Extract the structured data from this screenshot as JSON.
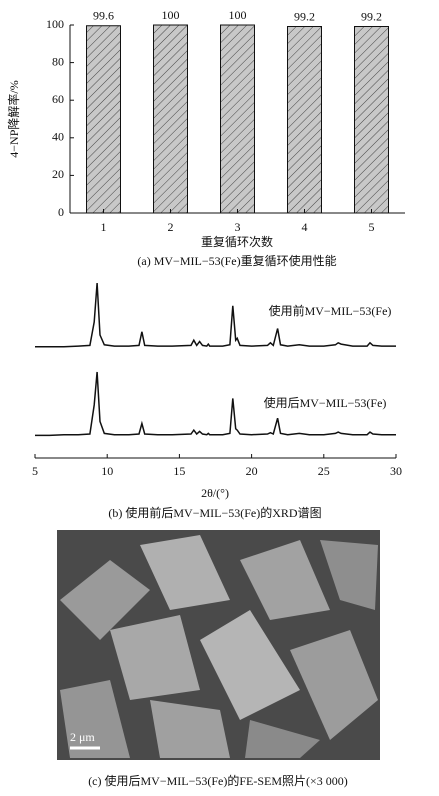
{
  "chart_data": [
    {
      "type": "bar",
      "title": "(a) MV−MIL−53(Fe)重复循环使用性能",
      "x_label": "重复循环次数",
      "y_label": "4−NP降解率/%",
      "categories": [
        "1",
        "2",
        "3",
        "4",
        "5"
      ],
      "values": [
        99.6,
        100,
        100,
        99.2,
        99.2
      ],
      "color": "#bdbdbd",
      "ylim": [
        0,
        100
      ],
      "yticks": [
        0,
        20,
        40,
        60,
        80,
        100
      ]
    },
    {
      "type": "line",
      "title": "(b) 使用前后MV−MIL−53(Fe)的XRD谱图",
      "x_label": "2θ/(°)",
      "x": [
        5,
        6,
        7,
        8,
        8.8,
        9.1,
        9.3,
        9.5,
        9.8,
        10.5,
        11.5,
        12.2,
        12.4,
        12.6,
        13.5,
        14.5,
        15.8,
        16.0,
        16.2,
        16.4,
        16.6,
        16.9,
        17.0,
        17.1,
        18.0,
        18.5,
        18.7,
        18.9,
        19.0,
        19.2,
        20.0,
        21.1,
        21.3,
        21.5,
        21.8,
        22.0,
        22.5,
        23.3,
        24.0,
        25.0,
        25.8,
        26.0,
        26.2,
        27.0,
        28.0,
        28.2,
        28.4,
        29.0,
        30
      ],
      "xlim": [
        5,
        30
      ],
      "xticks": [
        5,
        10,
        15,
        20,
        25,
        30
      ],
      "series": [
        {
          "name": "使用前MV−MIL−53(Fe)",
          "color": "#111111",
          "values": [
            2,
            2,
            2,
            3,
            4,
            40,
            100,
            20,
            5,
            3,
            3,
            4,
            25,
            4,
            3,
            3,
            4,
            12,
            4,
            10,
            4,
            3,
            6,
            3,
            3,
            5,
            65,
            12,
            15,
            4,
            3,
            4,
            8,
            4,
            30,
            5,
            3,
            5,
            3,
            3,
            5,
            8,
            6,
            3,
            3,
            8,
            4,
            3,
            3
          ]
        },
        {
          "name": "使用后MV−MIL−53(Fe)",
          "color": "#111111",
          "values": [
            4,
            4,
            5,
            5,
            6,
            50,
            100,
            25,
            7,
            5,
            5,
            6,
            22,
            6,
            5,
            5,
            6,
            12,
            6,
            10,
            6,
            5,
            7,
            5,
            5,
            7,
            60,
            14,
            12,
            6,
            5,
            6,
            8,
            6,
            30,
            7,
            5,
            7,
            5,
            5,
            7,
            9,
            7,
            5,
            5,
            9,
            6,
            5,
            5
          ]
        }
      ]
    }
  ],
  "image": {
    "scale_bar": "2 μm",
    "caption": "(c) 使用后MV−MIL−53(Fe)的FE-SEM照片(×3 000)"
  }
}
